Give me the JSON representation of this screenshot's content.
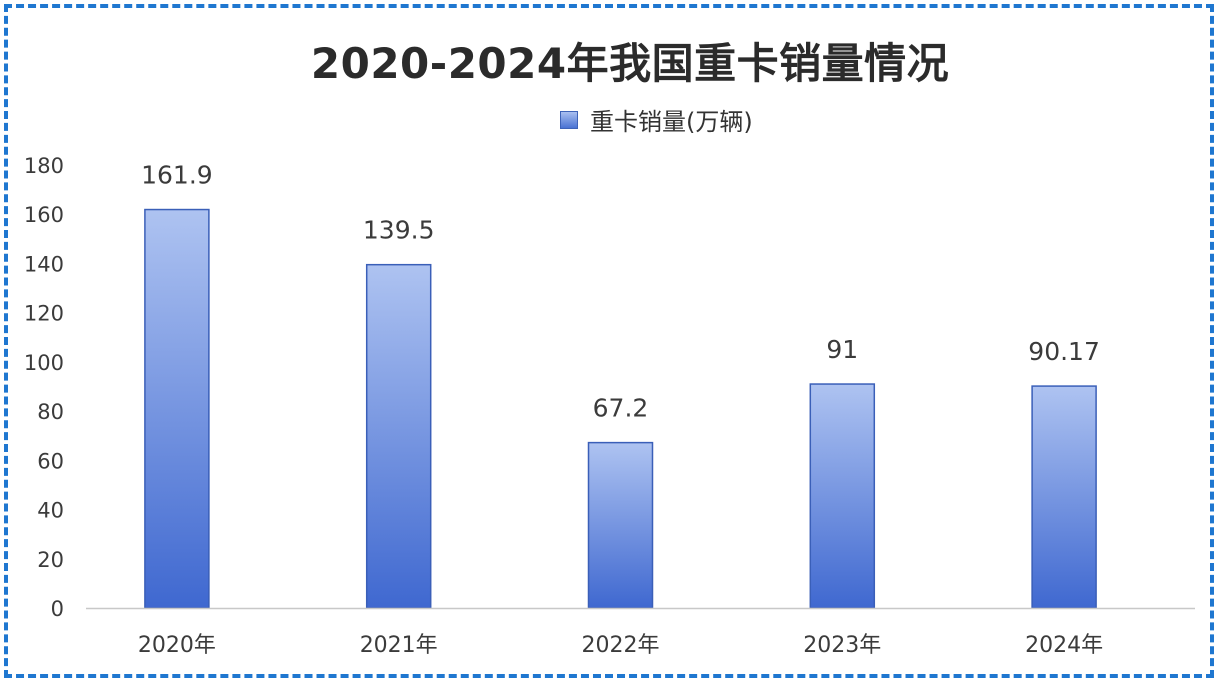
{
  "title": "2020-2024年我国重卡销量情况",
  "legend": {
    "label": "重卡销量(万辆)"
  },
  "chart_data": {
    "type": "bar",
    "categories": [
      "2020年",
      "2021年",
      "2022年",
      "2023年",
      "2024年"
    ],
    "series": [
      {
        "name": "重卡销量(万辆)",
        "values": [
          161.9,
          139.5,
          67.2,
          91,
          90.17
        ],
        "labels": [
          "161.9",
          "139.5",
          "67.2",
          "91",
          "90.17"
        ]
      }
    ],
    "ylim": [
      0,
      180
    ],
    "yticks": [
      0,
      20,
      40,
      60,
      80,
      100,
      120,
      140,
      160,
      180
    ],
    "grid": false,
    "legend_position": "top-center",
    "colors": {
      "bar_top": "#aec3f1",
      "bar_bottom": "#3f68d0",
      "bar_border": "#3a5fb8",
      "axis": "#c8c8c8",
      "frame": "#1f77d0"
    }
  }
}
